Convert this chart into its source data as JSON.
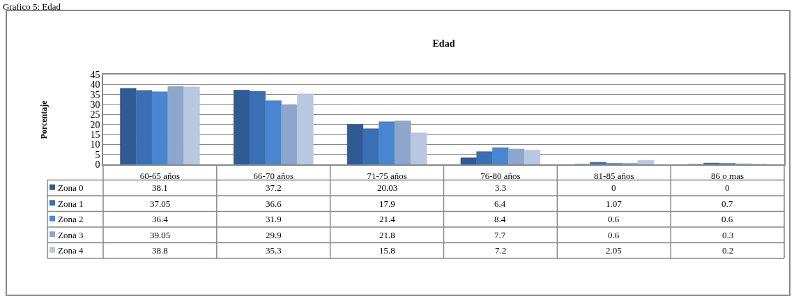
{
  "chart_data": {
    "type": "bar",
    "title": "Edad",
    "ylabel": "Porcentaje",
    "annotations": [
      "Grafico 5: Edad"
    ],
    "categories": [
      "60-65 años",
      "66-70 años",
      "71-75 años",
      "76-80 años",
      "81-85 años",
      "86 o mas"
    ],
    "series": [
      {
        "name": "Zona 0",
        "color": "#2f5a94",
        "values": [
          38.1,
          37.2,
          20.03,
          3.3,
          0,
          0
        ]
      },
      {
        "name": "Zona 1",
        "color": "#3a6fb5",
        "values": [
          37.05,
          36.6,
          17.9,
          6.4,
          1.07,
          0.7
        ]
      },
      {
        "name": "Zona 2",
        "color": "#4a86d0",
        "values": [
          36.4,
          31.9,
          21.4,
          8.4,
          0.6,
          0.6
        ]
      },
      {
        "name": "Zona 3",
        "color": "#8fa6cc",
        "values": [
          39.05,
          29.9,
          21.8,
          7.7,
          0.6,
          0.3
        ]
      },
      {
        "name": "Zona 4",
        "color": "#b9c7e0",
        "values": [
          38.8,
          35.3,
          15.8,
          7.2,
          2.05,
          0.2
        ]
      }
    ],
    "ylim": [
      0,
      45
    ],
    "yticks": [
      0,
      5,
      10,
      15,
      20,
      25,
      30,
      35,
      40,
      45
    ],
    "grid": "y",
    "legend": "bottom left",
    "data_labels": true
  }
}
